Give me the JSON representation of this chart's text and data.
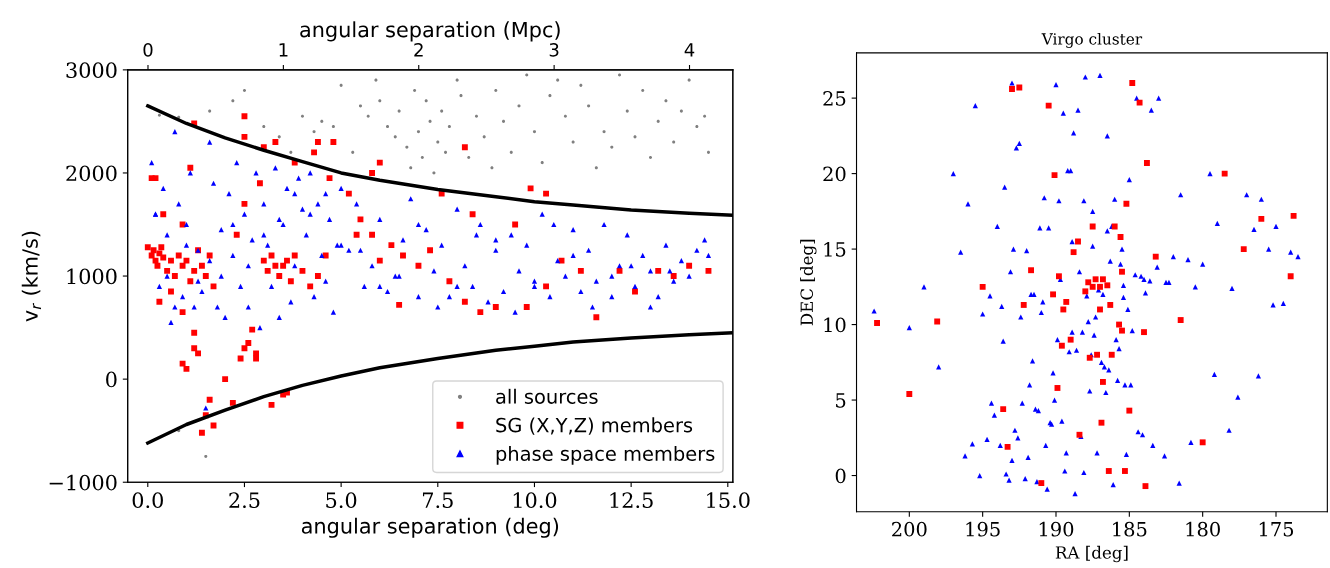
{
  "chart_data": [
    {
      "type": "scatter",
      "xlabel": "angular separation (deg)",
      "ylabel": "v$_{r}$ (km/s)",
      "x2label": "angular separation (Mpc)",
      "xlim": [
        -0.52,
        15.13
      ],
      "xticks": [
        {
          "value": 0,
          "label": "0.0"
        },
        {
          "value": 2.5,
          "label": "2.5"
        },
        {
          "value": 5,
          "label": "5.0"
        },
        {
          "value": 7.5,
          "label": "7.5"
        },
        {
          "value": 10,
          "label": "10.0"
        },
        {
          "value": 12.5,
          "label": "12.5"
        },
        {
          "value": 15,
          "label": "15.0"
        }
      ],
      "x2lim": [
        -0.15,
        4.32
      ],
      "x2ticks": [
        0,
        1,
        2,
        3,
        4
      ],
      "ylim": [
        -1000,
        3000
      ],
      "yticks": [
        {
          "value": -1000,
          "label": "−1000"
        },
        0,
        1000,
        2000,
        3000
      ],
      "legend": "bottom right",
      "grid": false,
      "series": [
        {
          "name": "all sources",
          "marker": "circle",
          "color": "#808080",
          "x": [
            0.3,
            0.8,
            1.6,
            2.2,
            2.5,
            3.0,
            3.4,
            3.7,
            4.0,
            4.3,
            4.5,
            4.8,
            5.0,
            5.3,
            5.5,
            5.7,
            5.9,
            6.0,
            6.2,
            6.4,
            6.5,
            6.7,
            6.8,
            6.9,
            7.0,
            7.1,
            7.2,
            7.3,
            7.4,
            7.5,
            7.6,
            7.7,
            7.8,
            8.0,
            8.1,
            8.3,
            8.5,
            8.7,
            8.9,
            9.0,
            9.2,
            9.4,
            9.6,
            9.8,
            10.0,
            10.2,
            10.4,
            10.6,
            10.8,
            11.0,
            11.2,
            11.4,
            11.6,
            11.8,
            12.0,
            12.2,
            12.4,
            12.6,
            12.8,
            13.0,
            13.2,
            13.4,
            13.6,
            13.8,
            14.0,
            14.2,
            14.4,
            14.5,
            1.5,
            0.8
          ],
          "values": [
            2560,
            2540,
            2600,
            2700,
            2800,
            2450,
            2350,
            2200,
            2550,
            2400,
            2500,
            2450,
            2850,
            2200,
            2650,
            2550,
            2900,
            2700,
            2450,
            2350,
            2600,
            2250,
            2050,
            2800,
            2400,
            2150,
            2700,
            2500,
            2000,
            2300,
            2600,
            2200,
            2450,
            2900,
            2750,
            2150,
            2550,
            2350,
            2050,
            2800,
            2500,
            2200,
            2650,
            2950,
            2400,
            2100,
            2750,
            2900,
            2550,
            2300,
            2850,
            2650,
            2050,
            2400,
            2250,
            2950,
            2600,
            2350,
            2800,
            2150,
            2500,
            2700,
            2300,
            2600,
            2900,
            2450,
            2550,
            2200,
            -750,
            -500
          ]
        },
        {
          "name": "SG (X,Y,Z) members",
          "marker": "square",
          "color": "#ff0000",
          "x": [
            0.0,
            0.1,
            0.15,
            0.2,
            0.25,
            0.3,
            0.35,
            0.4,
            0.5,
            0.6,
            0.7,
            0.8,
            0.9,
            1.0,
            1.1,
            1.2,
            1.3,
            1.4,
            1.5,
            1.6,
            1.7,
            0.1,
            0.3,
            0.6,
            0.9,
            1.2,
            0.9,
            1.0,
            1.2,
            1.3,
            1.5,
            1.6,
            1.7,
            1.4,
            2.0,
            2.2,
            2.4,
            2.5,
            2.6,
            2.8,
            3.0,
            3.1,
            3.2,
            3.3,
            3.4,
            3.5,
            3.6,
            3.7,
            3.8,
            4.0,
            4.2,
            4.4,
            4.6,
            2.5,
            2.7,
            2.8,
            3.2,
            3.5,
            3.6,
            2.3,
            2.5,
            2.9,
            3.8,
            4.8,
            4.3,
            4.7,
            0.4,
            0.9,
            1.1,
            2.5,
            3.0,
            3.3,
            4.4,
            1.2,
            0.2,
            5.2,
            5.5,
            5.8,
            6.0,
            6.3,
            6.6,
            7.0,
            7.3,
            7.8,
            8.2,
            8.6,
            9.0,
            9.5,
            9.8,
            10.3,
            10.7,
            11.2,
            11.6,
            12.2,
            12.6,
            13.2,
            13.6,
            14.0,
            14.5,
            5.8,
            6.0,
            7.6,
            8.2,
            9.9,
            10.3,
            8.4,
            5.4,
            6.5
          ],
          "values": [
            1280,
            1200,
            1250,
            1150,
            1100,
            1220,
            1280,
            1180,
            1050,
            1150,
            1000,
            1200,
            1100,
            1150,
            950,
            1050,
            1250,
            1100,
            1000,
            1200,
            900,
            1950,
            750,
            850,
            650,
            450,
            150,
            100,
            300,
            250,
            -350,
            -200,
            -450,
            -520,
            0,
            -230,
            200,
            300,
            350,
            250,
            1150,
            1050,
            1200,
            1100,
            1000,
            1100,
            1150,
            950,
            1200,
            1050,
            900,
            1000,
            1200,
            2550,
            480,
            200,
            -250,
            -150,
            -130,
            1400,
            1700,
            1900,
            2100,
            2300,
            2200,
            1950,
            1600,
            1500,
            2050,
            2350,
            2250,
            2300,
            2300,
            2480,
            1950,
            1800,
            1550,
            1400,
            1150,
            1300,
            1200,
            1100,
            1250,
            950,
            750,
            650,
            700,
            1500,
            700,
            900,
            1150,
            1050,
            600,
            1050,
            850,
            1050,
            1000,
            1100,
            1050,
            2000,
            2100,
            1800,
            2250,
            1850,
            1800,
            1600,
            1400,
            720
          ]
        },
        {
          "name": "phase space members",
          "marker": "triangle",
          "color": "#0000ff",
          "x": [
            0.1,
            0.2,
            0.3,
            0.4,
            0.5,
            0.6,
            0.7,
            0.8,
            0.9,
            1.0,
            1.1,
            1.2,
            1.3,
            1.4,
            1.5,
            1.6,
            1.7,
            1.8,
            1.9,
            2.0,
            2.1,
            2.2,
            2.3,
            2.4,
            2.5,
            2.6,
            2.7,
            2.8,
            2.9,
            3.0,
            3.1,
            3.2,
            3.3,
            3.4,
            3.5,
            3.6,
            3.7,
            3.8,
            3.9,
            4.0,
            4.1,
            4.2,
            4.3,
            4.4,
            4.5,
            4.6,
            4.7,
            4.8,
            4.9,
            5.0,
            5.2,
            5.4,
            5.6,
            5.8,
            6.0,
            6.2,
            6.4,
            6.6,
            6.8,
            7.0,
            7.2,
            7.4,
            7.6,
            7.8,
            8.0,
            8.2,
            8.4,
            8.6,
            8.8,
            9.0,
            9.2,
            9.4,
            9.6,
            9.8,
            10.0,
            10.2,
            10.4,
            10.6,
            10.8,
            11.0,
            11.2,
            11.4,
            11.6,
            11.8,
            12.0,
            12.2,
            12.4,
            12.6,
            12.8,
            13.0,
            13.2,
            13.4,
            13.6,
            13.8,
            14.0,
            14.2,
            14.4,
            14.5,
            0.2,
            0.5,
            0.7,
            1.0,
            1.3,
            1.6,
            1.9,
            2.2,
            2.6,
            3.0,
            3.4,
            3.8,
            4.2,
            4.6,
            5.0,
            5.5,
            6.0,
            6.5,
            7.0,
            7.5,
            8.0,
            8.5,
            9.0,
            9.5,
            10.0,
            10.5,
            11.0,
            11.5,
            12.0,
            12.5,
            13.0,
            13.5
          ],
          "values": [
            2100,
            1600,
            900,
            1850,
            1400,
            550,
            2400,
            1700,
            800,
            1500,
            2000,
            700,
            1250,
            850,
            -280,
            2300,
            1900,
            700,
            1450,
            600,
            1800,
            1200,
            2100,
            900,
            1600,
            700,
            1350,
            2000,
            500,
            1700,
            1300,
            900,
            2050,
            600,
            1500,
            1850,
            750,
            1100,
            1950,
            1650,
            1400,
            2000,
            800,
            1700,
            1200,
            950,
            1550,
            650,
            1300,
            1850,
            1250,
            1700,
            900,
            1100,
            1550,
            850,
            1000,
            1350,
            1750,
            800,
            1450,
            1050,
            1300,
            800,
            1650,
            1100,
            900,
            1500,
            750,
            1250,
            850,
            1400,
            1050,
            1300,
            900,
            1600,
            800,
            1150,
            1000,
            1450,
            850,
            1250,
            950,
            1500,
            800,
            1100,
            1400,
            900,
            1200,
            1050,
            800,
            1300,
            950,
            1150,
            1000,
            1250,
            1350,
            1200,
            1600,
            1000,
            700,
            1300,
            950,
            1150,
            1000,
            1500,
            1100,
            1400,
            1550,
            1800,
            1600,
            1800,
            1300,
            1250,
            900,
            1000,
            1500,
            700,
            900,
            1400,
            1350,
            650,
            950,
            1500,
            1200,
            700,
            1000,
            1100,
            700,
            1050
          ]
        },
        {
          "type": "line",
          "color": "#000000",
          "x": [
            0,
            1,
            2,
            3,
            4,
            5,
            6,
            7.5,
            9,
            10,
            11,
            12.5,
            14,
            15.13
          ],
          "values": [
            2650,
            2480,
            2340,
            2220,
            2110,
            2000,
            1930,
            1840,
            1770,
            1720,
            1690,
            1640,
            1610,
            1590
          ]
        },
        {
          "type": "line",
          "color": "#000000",
          "x": [
            0,
            1,
            2,
            3,
            4,
            5,
            6,
            7.5,
            9,
            10,
            11,
            12.5,
            14,
            15.13
          ],
          "values": [
            -620,
            -440,
            -300,
            -170,
            -60,
            30,
            110,
            200,
            280,
            320,
            360,
            400,
            430,
            450
          ]
        }
      ]
    },
    {
      "type": "scatter",
      "title": "Virgo cluster",
      "xlabel": "RA [deg]",
      "ylabel": "DEC [deg]",
      "xlim": [
        203.6,
        171.5
      ],
      "xticks": [
        200,
        195,
        190,
        185,
        180,
        175
      ],
      "ylim": [
        -2.4,
        28
      ],
      "yticks": [
        0,
        5,
        10,
        15,
        20,
        25
      ],
      "grid": false,
      "series": [
        {
          "marker": "triangle",
          "color": "#0000ff",
          "x": [
            202.4,
            200,
            199,
            198,
            197,
            196.5,
            196,
            195.5,
            195,
            194.5,
            194,
            193.5,
            193,
            192.5,
            192,
            191.5,
            191,
            190.5,
            190,
            189.5,
            189,
            188.5,
            188,
            187.5,
            187,
            186.5,
            186,
            185.5,
            185,
            184.5,
            184,
            183.5,
            183,
            182.5,
            182,
            181.5,
            181,
            180.5,
            180,
            179.5,
            179,
            178,
            177,
            176.5,
            176,
            175.5,
            175,
            174.5,
            174,
            173.5,
            193,
            193.2,
            192.8,
            191.2,
            190.7,
            189.3,
            188.7,
            188.1,
            187.6,
            186.9,
            186.4,
            185.8,
            185.3,
            184.8,
            184.2,
            183.6,
            186.2,
            185.6,
            185.1,
            185.9,
            186.6,
            187.3,
            188.2,
            189.1,
            190.2,
            191.4,
            192.6,
            193.8,
            194.7,
            195.7,
            191.7,
            190.9,
            189.7,
            188.9,
            188.4,
            187.9,
            187.1,
            186.3,
            185.4,
            184.6,
            183.9,
            183.1,
            182.3,
            190.4,
            191.9,
            192.3,
            189.9,
            188.6,
            187.4,
            186.7,
            193.4,
            192.1,
            191.3,
            190.6,
            189.4,
            188.3,
            187.2,
            186.1,
            185.2,
            184.4,
            193.1,
            192.4,
            191.6,
            190.1,
            189.6,
            188.9,
            187.8,
            186.8,
            185.7,
            184.9,
            194.2,
            193.7,
            192.9,
            191.1,
            190.8,
            189.2,
            188.1,
            187.5,
            186.5,
            185.4,
            184.1,
            183.4,
            182.6,
            181.6,
            180.8,
            179.2,
            178.2,
            177.6,
            176.2,
            175.2,
            196.2,
            195.2,
            194.4,
            193.6,
            192.7,
            191.8,
            190.3,
            189.8,
            188.8,
            187.7
          ],
          "values": [
            10.9,
            9.8,
            12.5,
            7.2,
            20.0,
            14.8,
            18.0,
            24.5,
            10.7,
            11.9,
            16.5,
            19.1,
            26.0,
            22.0,
            14.9,
            12.0,
            10.8,
            16.4,
            25.9,
            24.0,
            20.2,
            24.2,
            26.4,
            17.5,
            26.5,
            22.5,
            18.3,
            15.0,
            19.6,
            25.0,
            13.0,
            24.2,
            25.0,
            12.8,
            14.5,
            18.6,
            14.3,
            12.5,
            14.0,
            20.0,
            16.7,
            12.4,
            18.6,
            16.3,
            18.3,
            15.0,
            16.5,
            11.4,
            14.8,
            14.5,
            1.0,
            -0.3,
            3.0,
            4.3,
            2.0,
            1.5,
            -1.2,
            0.2,
            8.0,
            7.5,
            7.0,
            6.3,
            6.0,
            9.6,
            13.2,
            12.9,
            16.5,
            14.0,
            11.0,
            9.0,
            5.5,
            10.5,
            9.5,
            8.2,
            6.8,
            4.4,
            2.5,
            2.0,
            2.4,
            2.1,
            12.0,
            11.5,
            13.0,
            15.5,
            13.5,
            11.9,
            12.3,
            14.2,
            12.6,
            13.3,
            12.1,
            13.8,
            12.8,
            3.5,
            1.2,
            4.8,
            9.0,
            8.3,
            9.3,
            7.2,
            0.1,
            -0.2,
            -0.4,
            -0.9,
            0.3,
            2.6,
            1.5,
            -0.6,
            1.4,
            2.9,
            13.5,
            10.5,
            7.6,
            5.0,
            3.6,
            9.5,
            10.2,
            12.0,
            8.4,
            6.0,
            4.0,
            11.2,
            15.0,
            16.4,
            18.4,
            20.2,
            18.2,
            15.2,
            16.2,
            11.8,
            2.7,
            2.0,
            1.3,
            -0.5,
            2.2,
            6.7,
            3.0,
            5.2,
            6.6,
            11.3,
            1.3,
            0.0,
            4.8,
            8.9,
            21.7,
            6.0,
            3.4,
            18.2,
            22.7,
            5.6
          ]
        },
        {
          "marker": "square",
          "color": "#ff0000",
          "x": [
            202.2,
            200,
            198.1,
            195,
            193.3,
            193,
            192.5,
            192.2,
            190.5,
            190.2,
            189.8,
            189.5,
            189.0,
            188.5,
            188.0,
            187.8,
            187.5,
            187.3,
            187.0,
            186.8,
            186.5,
            186.2,
            186.0,
            185.7,
            185.5,
            185.2,
            184.8,
            184.3,
            183.8,
            183.2,
            181.5,
            180,
            178.5,
            177.2,
            176,
            174,
            173.8,
            189.3,
            190.1,
            191.7,
            189.9,
            188.4,
            187.2,
            186.3,
            185.5,
            187.7,
            188.8,
            186.9,
            187.0,
            186.4,
            191.0,
            193.6,
            185.0,
            184.0,
            185.6,
            189.6,
            187.5,
            186.8,
            185.3,
            183.9
          ],
          "values": [
            10.1,
            5.4,
            10.2,
            12.5,
            1.9,
            25.6,
            25.7,
            11.3,
            24.5,
            12.0,
            13.2,
            11.0,
            9.0,
            15.5,
            12.2,
            12.8,
            12.5,
            13.0,
            12.5,
            13.0,
            12.6,
            8.0,
            16.5,
            10.0,
            13.5,
            18.0,
            26.0,
            24.7,
            20.7,
            14.5,
            10.3,
            2.2,
            20.0,
            15.0,
            17.0,
            13.2,
            17.2,
            11.5,
            19.9,
            13.6,
            5.8,
            2.7,
            8.0,
            11.3,
            9.6,
            7.8,
            14.8,
            3.5,
            11.0,
            0.3,
            -0.5,
            4.4,
            4.3,
            9.5,
            15.8,
            8.6,
            16.5,
            6.2,
            0.3,
            -0.7
          ]
        }
      ]
    }
  ]
}
